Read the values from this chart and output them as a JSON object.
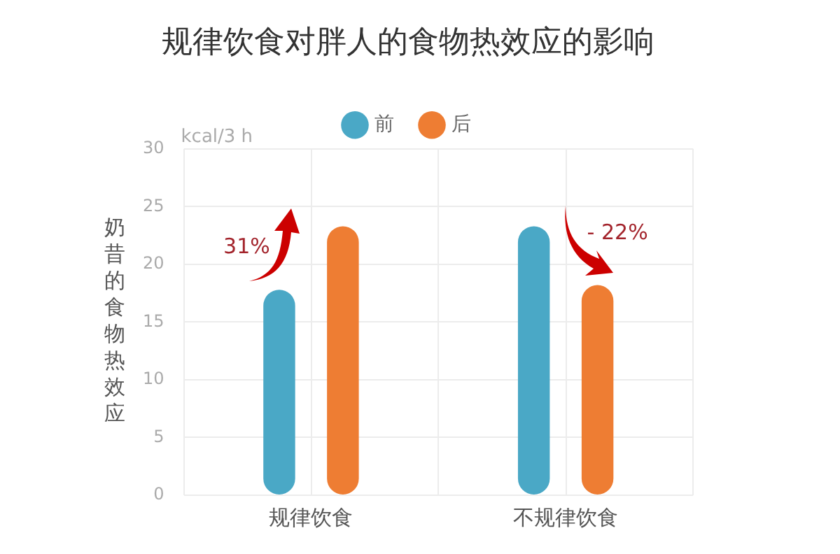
{
  "chart_data": {
    "type": "bar",
    "title": "规律饮食对胖人的食物热效应的影响",
    "ylabel": "奶昔的食物热效应",
    "categories": [
      "规律饮食",
      "不规律饮食"
    ],
    "series": [
      {
        "name": "前",
        "color": "#4aa8c6",
        "values": [
          17.8,
          23.3
        ]
      },
      {
        "name": "后",
        "color": "#ee7d33",
        "values": [
          23.3,
          18.2
        ]
      }
    ],
    "ylim": [
      0,
      30
    ],
    "yticks": [
      0,
      5,
      10,
      15,
      20,
      25,
      30
    ],
    "grid": true,
    "legend": "top",
    "annotations": [
      "kcal/3 h",
      "31%",
      "- 22%"
    ]
  }
}
